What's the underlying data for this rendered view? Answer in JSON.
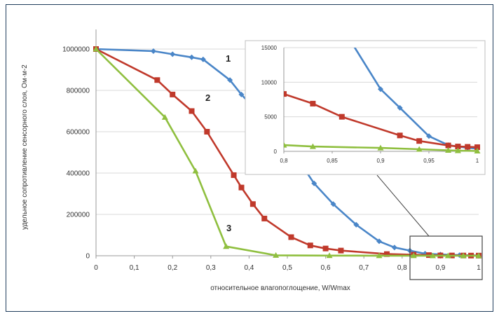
{
  "chart_data": [
    {
      "type": "line",
      "xlabel": "относительное влагопоглощение, W/Wmax",
      "ylabel": "удельное сопротивление сенсорного слоя, Ом·м-2",
      "xlim": [
        0,
        1
      ],
      "ylim": [
        0,
        1000000
      ],
      "x_ticks": [
        "0",
        "0,1",
        "0,2",
        "0,3",
        "0,4",
        "0,5",
        "0,6",
        "0,7",
        "0,8",
        "0,9",
        "1"
      ],
      "y_ticks": [
        "0",
        "200000",
        "400000",
        "600000",
        "800000",
        "1000000"
      ],
      "grid": "horizontal",
      "colors": {
        "series_1": "#4a86c8",
        "series_2": "#c0392b",
        "series_3": "#8fbf3f"
      },
      "series": [
        {
          "name": "1",
          "x": [
            0,
            0.15,
            0.2,
            0.25,
            0.28,
            0.35,
            0.38,
            0.42,
            0.47,
            0.53,
            0.57,
            0.62,
            0.68,
            0.74,
            0.78,
            0.82,
            0.86,
            0.9,
            0.95,
            1
          ],
          "y": [
            1000000,
            990000,
            975000,
            960000,
            950000,
            850000,
            780000,
            700000,
            600000,
            460000,
            350000,
            250000,
            150000,
            70000,
            40000,
            25000,
            10000,
            6000,
            3000,
            1000
          ]
        },
        {
          "name": "2",
          "x": [
            0,
            0.16,
            0.2,
            0.25,
            0.29,
            0.36,
            0.38,
            0.41,
            0.44,
            0.51,
            0.56,
            0.6,
            0.64,
            0.76,
            0.83,
            0.87,
            0.9,
            0.93,
            0.96,
            0.98,
            1
          ],
          "y": [
            1000000,
            850000,
            780000,
            700000,
            600000,
            390000,
            330000,
            250000,
            180000,
            90000,
            50000,
            35000,
            25000,
            8000,
            5000,
            3000,
            1500,
            1200,
            1000,
            700,
            600
          ]
        },
        {
          "name": "3",
          "x": [
            0,
            0.18,
            0.26,
            0.34,
            0.47,
            0.61,
            0.74,
            0.83,
            0.88,
            0.92,
            0.96,
            1
          ],
          "y": [
            1000000,
            670000,
            410000,
            45000,
            2000,
            800,
            500,
            300,
            200,
            100,
            80,
            50
          ]
        }
      ],
      "annotations": [
        "1",
        "2",
        "3"
      ]
    },
    {
      "type": "line",
      "xlim": [
        0.8,
        1
      ],
      "ylim": [
        0,
        15000
      ],
      "x_ticks": [
        "0,8",
        "0,85",
        "0,9",
        "0,95",
        "1"
      ],
      "y_ticks": [
        "0",
        "5000",
        "10000",
        "15000"
      ],
      "grid": "horizontal",
      "series": [
        {
          "name": "1",
          "x": [
            0.86,
            0.9,
            0.92,
            0.95,
            0.97,
            0.98,
            0.99,
            1
          ],
          "y": [
            18000,
            9000,
            6300,
            2200,
            900,
            700,
            500,
            400
          ]
        },
        {
          "name": "2",
          "x": [
            0.8,
            0.83,
            0.86,
            0.92,
            0.94,
            0.97,
            0.98,
            0.99,
            1
          ],
          "y": [
            8300,
            6900,
            5000,
            2300,
            1500,
            850,
            700,
            650,
            600
          ]
        },
        {
          "name": "3",
          "x": [
            0.8,
            0.83,
            0.9,
            0.94,
            0.97,
            0.98,
            1
          ],
          "y": [
            900,
            700,
            500,
            300,
            150,
            100,
            50
          ]
        }
      ]
    }
  ]
}
